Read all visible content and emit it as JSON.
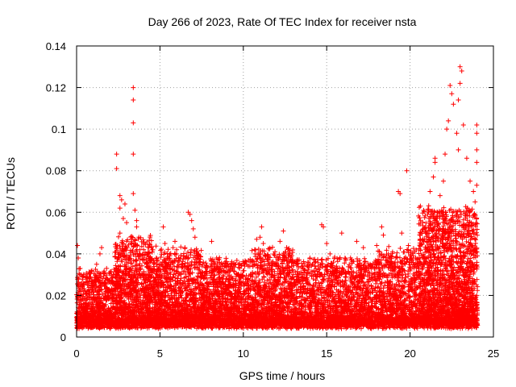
{
  "chart_data": {
    "type": "scatter",
    "title": "Day 266 of 2023, Rate Of TEC Index for receiver nsta",
    "xlabel": "GPS time / hours",
    "ylabel": "ROTI / TECUs",
    "xlim": [
      0,
      25
    ],
    "ylim": [
      0,
      0.14
    ],
    "xticks": [
      0,
      5,
      10,
      15,
      20,
      25
    ],
    "yticks": [
      0,
      0.02,
      0.04,
      0.06,
      0.08,
      0.1,
      0.12,
      0.14
    ],
    "xtick_labels": [
      "0",
      "5",
      "10",
      "15",
      "20",
      "25"
    ],
    "ytick_labels": [
      "0",
      "0.02",
      "0.04",
      "0.06",
      "0.08",
      "0.1",
      "0.12",
      "0.14"
    ],
    "grid": true,
    "marker": "plus",
    "color": "#ff0000",
    "series": [
      {
        "name": "ROTI",
        "points": [
          [
            0.05,
            0.044
          ],
          [
            0.1,
            0.038
          ],
          [
            0.2,
            0.03
          ],
          [
            0.3,
            0.026
          ],
          [
            0.5,
            0.022
          ],
          [
            0.8,
            0.028
          ],
          [
            1.2,
            0.035
          ],
          [
            1.4,
            0.04
          ],
          [
            1.5,
            0.043
          ],
          [
            1.8,
            0.033
          ],
          [
            2.2,
            0.03
          ],
          [
            2.4,
            0.088
          ],
          [
            2.4,
            0.081
          ],
          [
            2.6,
            0.068
          ],
          [
            2.6,
            0.062
          ],
          [
            2.7,
            0.066
          ],
          [
            2.8,
            0.057
          ],
          [
            2.9,
            0.064
          ],
          [
            2.6,
            0.05
          ],
          [
            3.0,
            0.055
          ],
          [
            3.0,
            0.046
          ],
          [
            3.4,
            0.12
          ],
          [
            3.4,
            0.114
          ],
          [
            3.4,
            0.103
          ],
          [
            3.4,
            0.088
          ],
          [
            3.4,
            0.069
          ],
          [
            3.5,
            0.061
          ],
          [
            3.6,
            0.056
          ],
          [
            3.6,
            0.053
          ],
          [
            3.3,
            0.047
          ],
          [
            3.8,
            0.042
          ],
          [
            4.0,
            0.038
          ],
          [
            4.3,
            0.03
          ],
          [
            4.6,
            0.026
          ],
          [
            5.2,
            0.053
          ],
          [
            5.3,
            0.045
          ],
          [
            5.5,
            0.035
          ],
          [
            5.9,
            0.046
          ],
          [
            6.0,
            0.042
          ],
          [
            6.3,
            0.035
          ],
          [
            6.7,
            0.06
          ],
          [
            6.8,
            0.059
          ],
          [
            6.9,
            0.056
          ],
          [
            7.0,
            0.052
          ],
          [
            7.1,
            0.048
          ],
          [
            6.5,
            0.043
          ],
          [
            7.3,
            0.04
          ],
          [
            7.6,
            0.036
          ],
          [
            8.1,
            0.046
          ],
          [
            8.4,
            0.038
          ],
          [
            8.8,
            0.032
          ],
          [
            9.2,
            0.034
          ],
          [
            9.6,
            0.03
          ],
          [
            10.0,
            0.029
          ],
          [
            10.5,
            0.036
          ],
          [
            10.7,
            0.04
          ],
          [
            10.8,
            0.047
          ],
          [
            11.0,
            0.048
          ],
          [
            11.1,
            0.053
          ],
          [
            11.2,
            0.045
          ],
          [
            11.5,
            0.037
          ],
          [
            11.9,
            0.041
          ],
          [
            12.2,
            0.046
          ],
          [
            12.4,
            0.051
          ],
          [
            12.6,
            0.043
          ],
          [
            12.9,
            0.036
          ],
          [
            13.3,
            0.034
          ],
          [
            13.7,
            0.032
          ],
          [
            14.0,
            0.038
          ],
          [
            14.3,
            0.03
          ],
          [
            14.7,
            0.054
          ],
          [
            14.8,
            0.053
          ],
          [
            15.0,
            0.045
          ],
          [
            15.2,
            0.04
          ],
          [
            15.4,
            0.036
          ],
          [
            15.6,
            0.031
          ],
          [
            15.9,
            0.05
          ],
          [
            16.1,
            0.038
          ],
          [
            16.5,
            0.037
          ],
          [
            16.8,
            0.046
          ],
          [
            17.2,
            0.043
          ],
          [
            17.6,
            0.035
          ],
          [
            18.0,
            0.044
          ],
          [
            18.3,
            0.053
          ],
          [
            18.4,
            0.049
          ],
          [
            18.7,
            0.04
          ],
          [
            19.1,
            0.036
          ],
          [
            19.3,
            0.07
          ],
          [
            19.4,
            0.069
          ],
          [
            19.5,
            0.05
          ],
          [
            19.8,
            0.08
          ],
          [
            19.9,
            0.044
          ],
          [
            20.2,
            0.038
          ],
          [
            20.6,
            0.047
          ],
          [
            20.9,
            0.052
          ],
          [
            21.1,
            0.06
          ],
          [
            21.2,
            0.07
          ],
          [
            21.4,
            0.077
          ],
          [
            21.5,
            0.084
          ],
          [
            21.5,
            0.086
          ],
          [
            21.8,
            0.068
          ],
          [
            22.0,
            0.075
          ],
          [
            22.1,
            0.088
          ],
          [
            22.2,
            0.1
          ],
          [
            22.3,
            0.104
          ],
          [
            22.4,
            0.121
          ],
          [
            22.5,
            0.117
          ],
          [
            22.6,
            0.112
          ],
          [
            22.8,
            0.098
          ],
          [
            22.9,
            0.114
          ],
          [
            23.0,
            0.122
          ],
          [
            23.0,
            0.13
          ],
          [
            23.1,
            0.128
          ],
          [
            22.9,
            0.09
          ],
          [
            23.2,
            0.102
          ],
          [
            23.4,
            0.086
          ],
          [
            23.6,
            0.075
          ],
          [
            23.8,
            0.07
          ],
          [
            24.0,
            0.102
          ],
          [
            24.0,
            0.098
          ],
          [
            24.0,
            0.09
          ],
          [
            24.0,
            0.084
          ],
          [
            24.0,
            0.073
          ],
          [
            23.9,
            0.065
          ],
          [
            24.0,
            0.02
          ]
        ]
      }
    ],
    "bulk": {
      "description": "dense band of low ROTI values",
      "segments": [
        {
          "x_range": [
            0,
            2.3
          ],
          "y_range": [
            0.004,
            0.03
          ],
          "count": 900
        },
        {
          "x_range": [
            2.3,
            4.5
          ],
          "y_range": [
            0.004,
            0.045
          ],
          "count": 1100
        },
        {
          "x_range": [
            4.5,
            7.5
          ],
          "y_range": [
            0.004,
            0.04
          ],
          "count": 1300
        },
        {
          "x_range": [
            7.5,
            10.5
          ],
          "y_range": [
            0.004,
            0.035
          ],
          "count": 1300
        },
        {
          "x_range": [
            10.5,
            13.0
          ],
          "y_range": [
            0.004,
            0.04
          ],
          "count": 1100
        },
        {
          "x_range": [
            13.0,
            18.0
          ],
          "y_range": [
            0.004,
            0.035
          ],
          "count": 1900
        },
        {
          "x_range": [
            18.0,
            20.5
          ],
          "y_range": [
            0.004,
            0.04
          ],
          "count": 1000
        },
        {
          "x_range": [
            20.5,
            24.05
          ],
          "y_range": [
            0.004,
            0.06
          ],
          "count": 2200
        }
      ]
    }
  }
}
